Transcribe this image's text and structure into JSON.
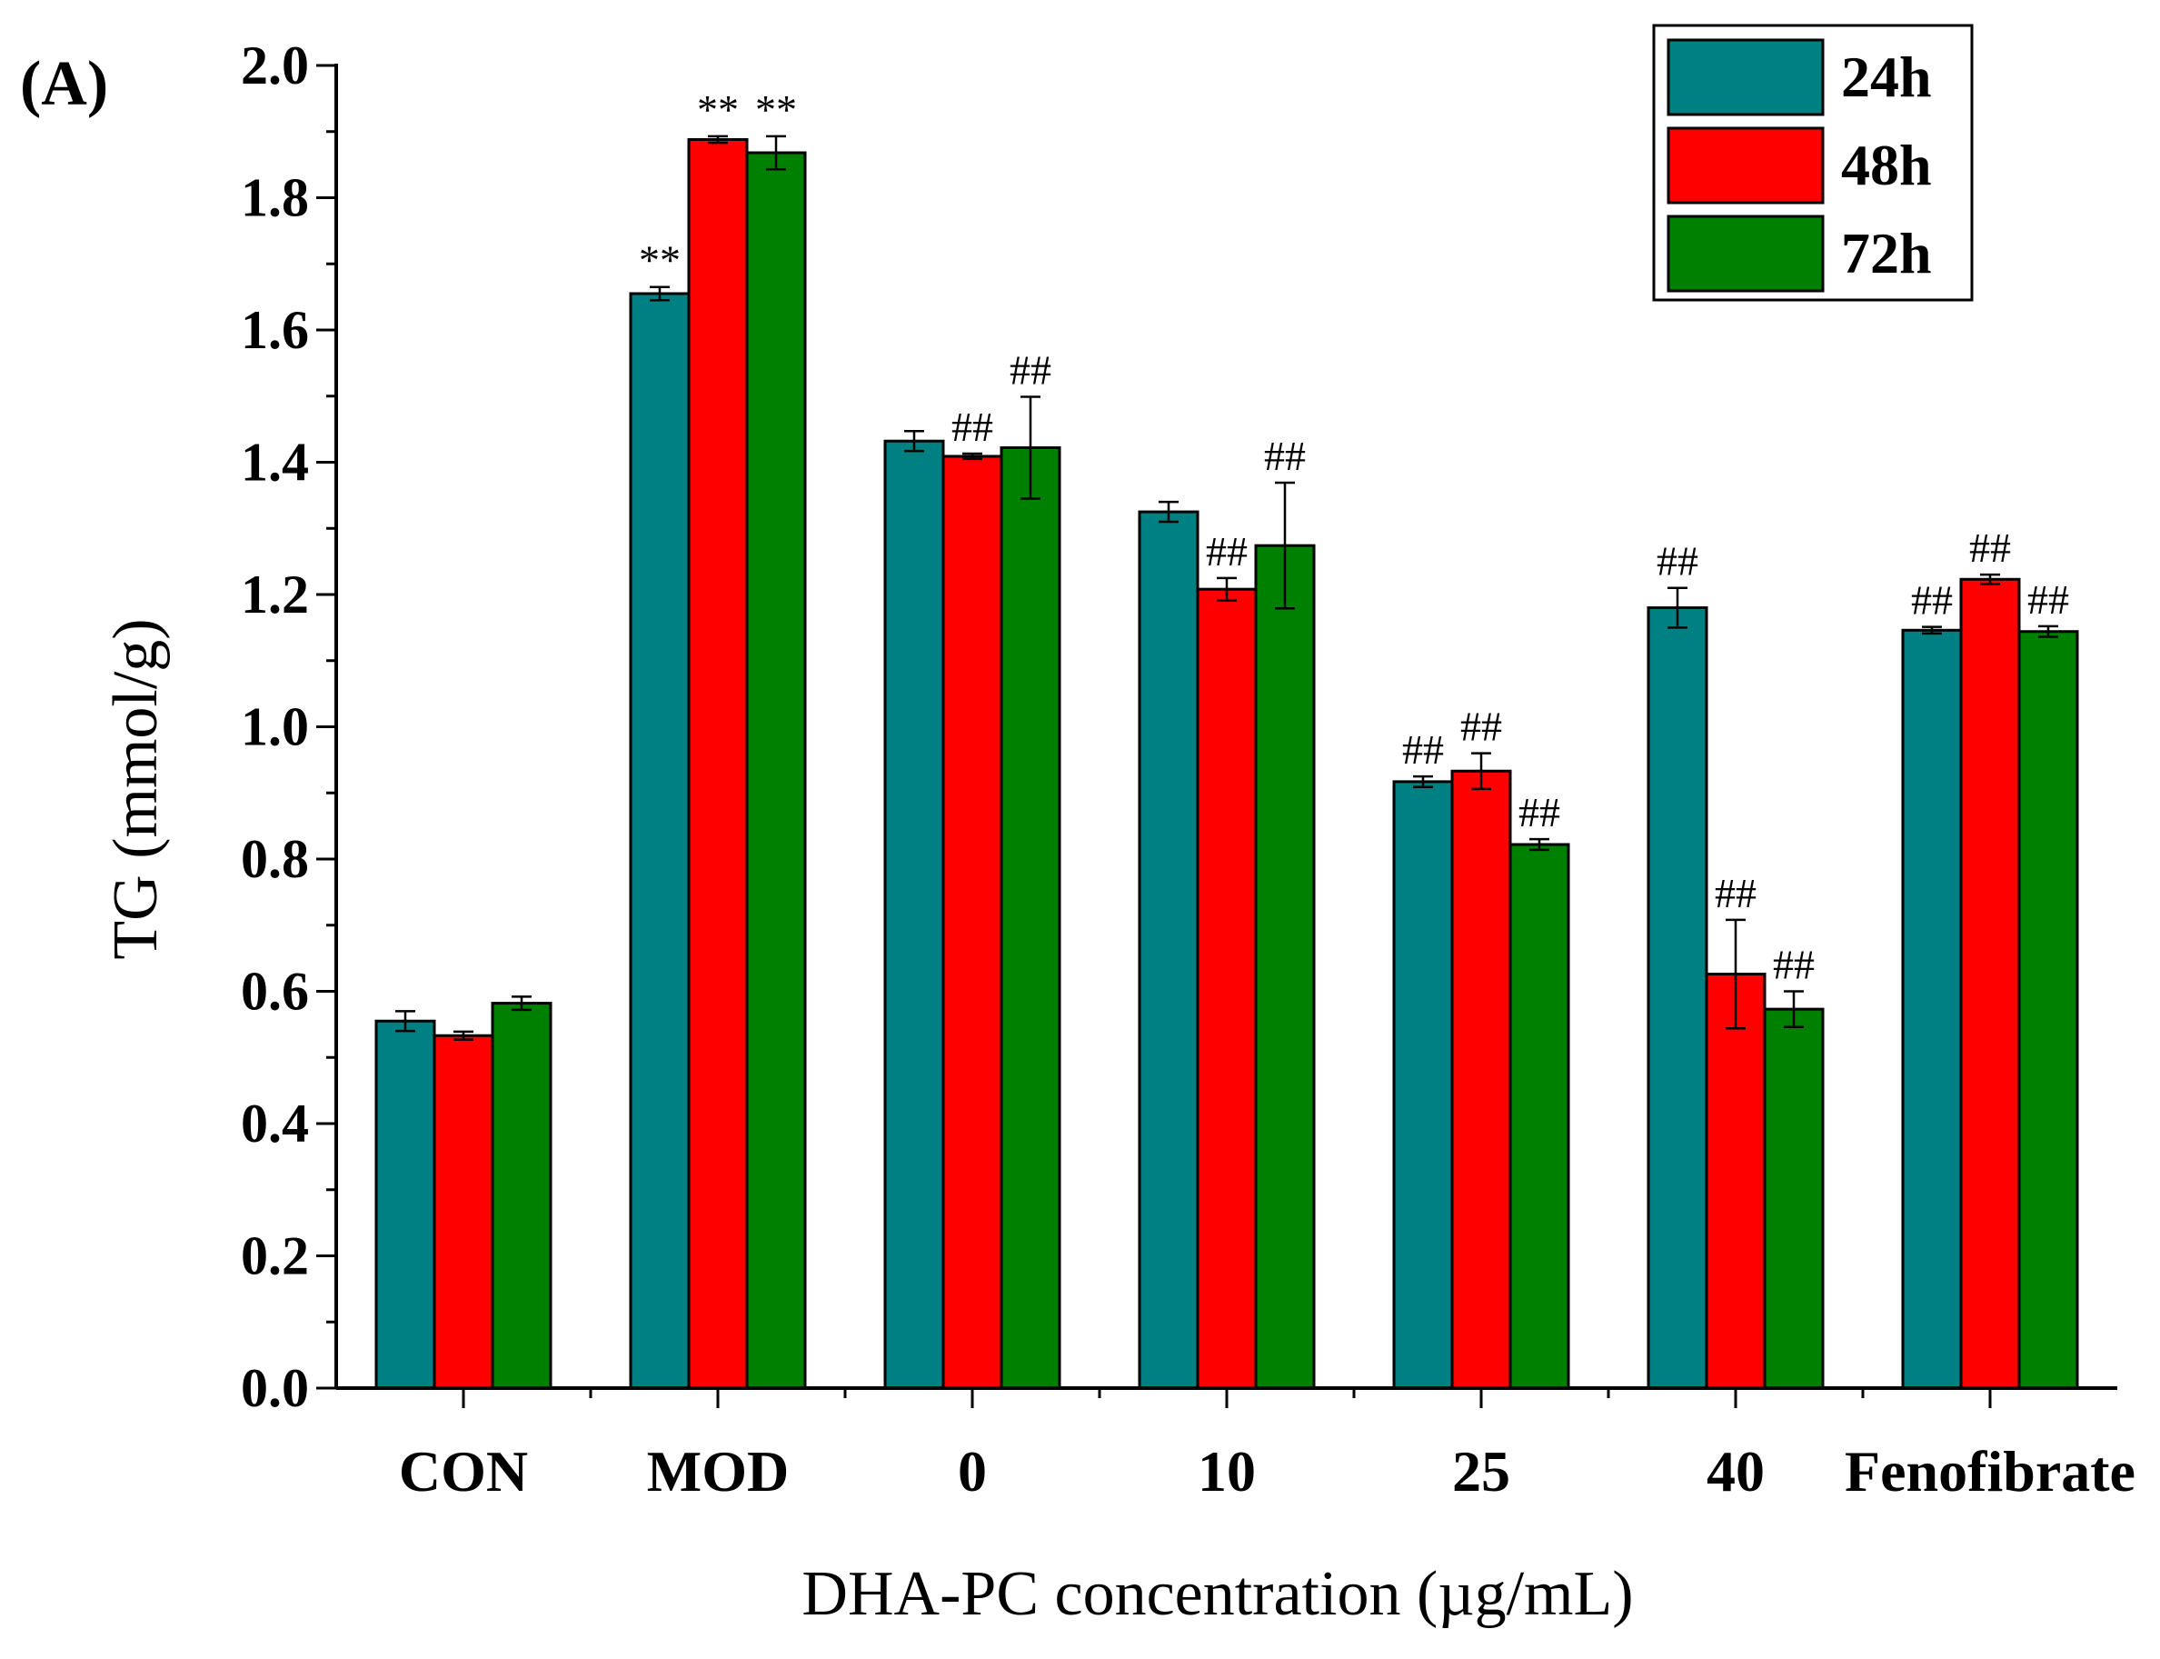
{
  "chart_data": {
    "type": "bar",
    "panel_label": "(A)",
    "title": "",
    "xlabel": "DHA-PC concentration (µg/mL)",
    "ylabel": "TG (mmol/g)",
    "ylim": [
      0,
      2.0
    ],
    "yticks": [
      "0.0",
      "0.2",
      "0.4",
      "0.6",
      "0.8",
      "1.0",
      "1.2",
      "1.4",
      "1.6",
      "1.8",
      "2.0"
    ],
    "categories": [
      "CON",
      "MOD",
      "0",
      "10",
      "25",
      "40",
      "Fenofibrate"
    ],
    "legend_position": "top-right",
    "series": [
      {
        "name": "24h",
        "color": "#008080",
        "values": [
          0.555,
          1.655,
          1.432,
          1.325,
          0.917,
          1.18,
          1.146
        ],
        "errors": [
          0.015,
          0.01,
          0.015,
          0.015,
          0.008,
          0.03,
          0.005
        ],
        "annotations": [
          "",
          "**",
          "",
          "",
          "##",
          "##",
          "##"
        ]
      },
      {
        "name": "48h",
        "color": "#ff0000",
        "values": [
          0.533,
          1.888,
          1.409,
          1.208,
          0.933,
          0.626,
          1.223
        ],
        "errors": [
          0.006,
          0.005,
          0.004,
          0.017,
          0.027,
          0.082,
          0.007
        ],
        "annotations": [
          "",
          "**",
          "##",
          "##",
          "##",
          "##",
          "##"
        ]
      },
      {
        "name": "72h",
        "color": "#008000",
        "values": [
          0.582,
          1.868,
          1.422,
          1.274,
          0.822,
          0.573,
          1.144
        ],
        "errors": [
          0.01,
          0.025,
          0.077,
          0.095,
          0.008,
          0.027,
          0.008
        ],
        "annotations": [
          "",
          "**",
          "##",
          "##",
          "##",
          "##",
          "##"
        ]
      }
    ]
  }
}
